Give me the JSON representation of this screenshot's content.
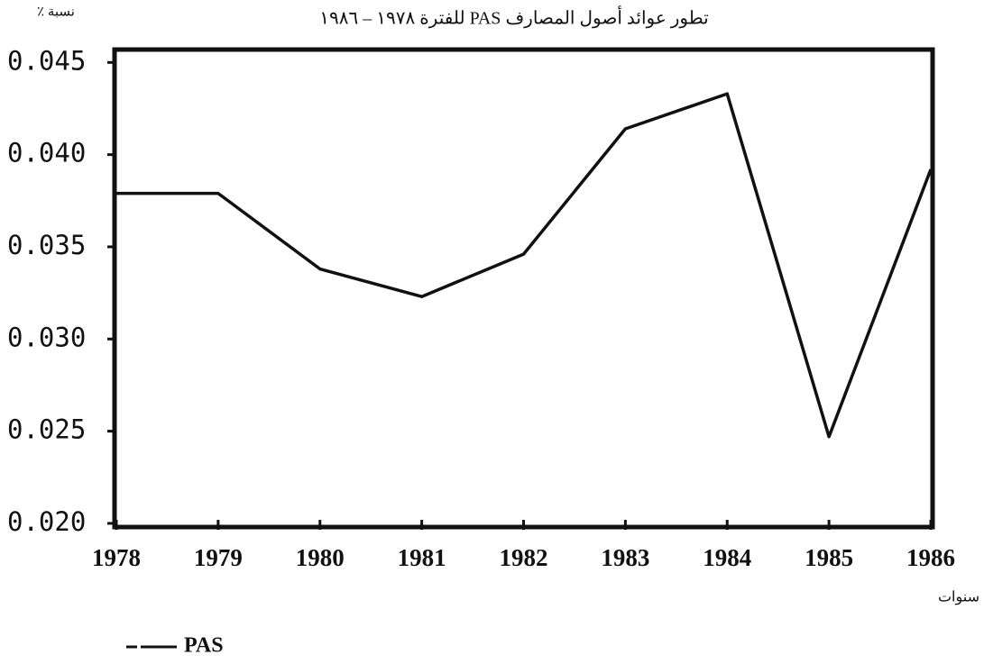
{
  "chart_data": {
    "type": "line",
    "title": "تطور عوائد أصول المصارف PAS للفترة ١٩٧٨ – ١٩٨٦",
    "y_label": "نسبة ٪",
    "x_label": "سنوات",
    "x": [
      1978,
      1979,
      1980,
      1981,
      1982,
      1983,
      1984,
      1985,
      1986
    ],
    "series": [
      {
        "name": "PAS",
        "color": "#111111",
        "values": [
          0.0379,
          0.0379,
          0.0338,
          0.0323,
          0.0346,
          0.0414,
          0.0433,
          0.0247,
          0.0392
        ]
      }
    ],
    "xlim": [
      1978,
      1986
    ],
    "xticks": [
      1978,
      1979,
      1980,
      1981,
      1982,
      1983,
      1984,
      1985,
      1986
    ],
    "ylim": [
      0.0198,
      0.0457
    ],
    "yticks": [
      {
        "value": 0.02,
        "label": "0.020"
      },
      0.025,
      {
        "value": 0.03,
        "label": "0.030"
      },
      0.035,
      {
        "value": 0.04,
        "label": "0.040"
      },
      0.045
    ],
    "legend": "bottom-left"
  }
}
